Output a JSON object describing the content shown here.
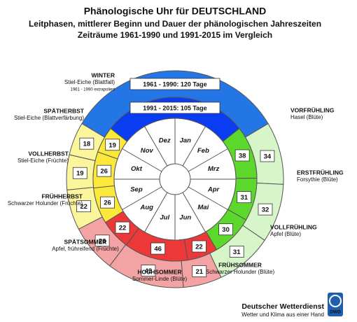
{
  "chart_data": {
    "type": "pie",
    "title": "Phänologische Uhr für DEUTSCHLAND",
    "subtitle": [
      "Leitphasen, mittlerer Beginn und Dauer der phänologischen Jahreszeiten",
      "Zeiträume 1961-1990 und 1991-2015 im Vergleich"
    ],
    "categories": [
      "WINTER",
      "VORFRÜHLING",
      "ERSTFRÜHLING",
      "VOLLFRÜHLING",
      "FRÜHSOMMER",
      "HOCHSOMMER",
      "SPÄTSOMMER",
      "FRÜHHERBST",
      "VOLLHERBST",
      "SPÄTHERBST"
    ],
    "indicators": [
      "Stiel-Eiche (Blattfall)",
      "Hasel (Blüte)",
      "Forsythie (Blüte)",
      "Apfel (Blüte)",
      "Schwarzer Holunder (Blüte)",
      "Sommer-Linde (Blüte)",
      "Apfel, frühreifend (Früchte)",
      "Schwarzer Holunder (Früchte)",
      "Stiel-Eiche (Früchte)",
      "Stiel-Eiche (Blattverfärbung)"
    ],
    "note": "1961 - 1990 extrapoliert",
    "series": [
      {
        "values": [
          120,
          34,
          32,
          31,
          21,
          42,
          26,
          22,
          19,
          18
        ],
        "value_labels": [
          "1961 - 1990: 120 Tage",
          "34",
          "32",
          "31",
          "21",
          "42",
          "26",
          "22",
          "19",
          "18"
        ],
        "colors": [
          "#2475e6",
          "#d6f5c8",
          "#d6f5c8",
          "#d6f5c8",
          "#f3a3a3",
          "#f3a3a3",
          "#f3a3a3",
          "#fbf69c",
          "#fbf69c",
          "#fbf69c"
        ]
      },
      {
        "values": [
          105,
          38,
          31,
          30,
          22,
          46,
          22,
          26,
          26,
          19
        ],
        "value_labels": [
          "1991 - 2015: 105 Tage",
          "38",
          "31",
          "30",
          "22",
          "46",
          "22",
          "26",
          "26",
          "19"
        ],
        "colors": [
          "#0a3cf2",
          "#5cd82c",
          "#5cd82c",
          "#5cd82c",
          "#ec3838",
          "#ec3838",
          "#ec3838",
          "#fbe83a",
          "#fbe83a",
          "#fbe83a"
        ]
      }
    ],
    "months": [
      "Jan",
      "Feb",
      "Mrz",
      "Apr",
      "Mai",
      "Jun",
      "Jul",
      "Aug",
      "Sep",
      "Okt",
      "Nov",
      "Dez"
    ],
    "publisher": "Deutscher Wetterdienst",
    "slogan": "Wetter und Klima aus einer Hand",
    "logo": "DWD"
  }
}
